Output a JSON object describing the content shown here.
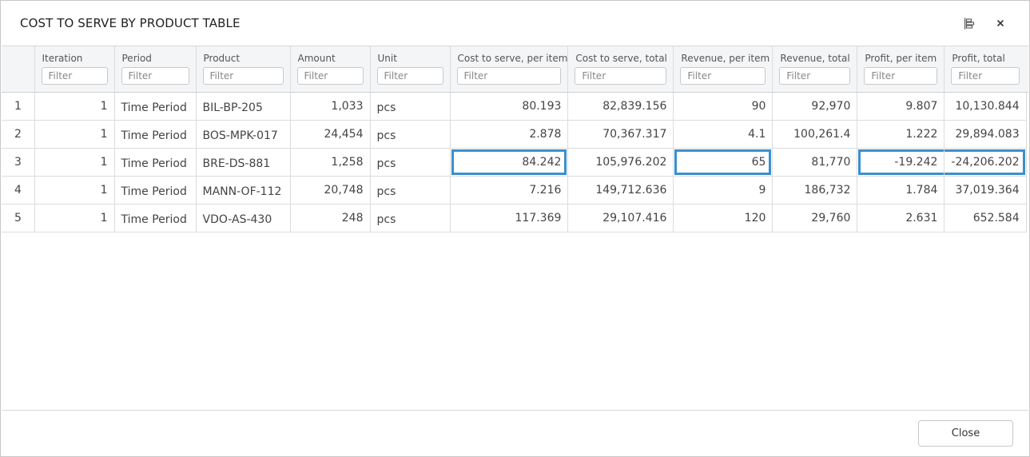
{
  "dialog": {
    "title": "COST TO SERVE BY PRODUCT TABLE",
    "close_button_label": "Close"
  },
  "table": {
    "filter_placeholder": "Filter",
    "columns": [
      {
        "label": "Iteration"
      },
      {
        "label": "Period"
      },
      {
        "label": "Product"
      },
      {
        "label": "Amount"
      },
      {
        "label": "Unit"
      },
      {
        "label": "Cost to serve, per item"
      },
      {
        "label": "Cost to serve, total"
      },
      {
        "label": "Revenue, per item"
      },
      {
        "label": "Revenue, total"
      },
      {
        "label": "Profit, per item"
      },
      {
        "label": "Profit, total"
      }
    ],
    "rows": [
      {
        "index": "1",
        "cells": [
          "1",
          "Time Period",
          "BIL-BP-205",
          "1,033",
          "pcs",
          "80.193",
          "82,839.156",
          "90",
          "92,970",
          "9.807",
          "10,130.844"
        ]
      },
      {
        "index": "2",
        "cells": [
          "1",
          "Time Period",
          "BOS-MPK-017",
          "24,454",
          "pcs",
          "2.878",
          "70,367.317",
          "4.1",
          "100,261.4",
          "1.222",
          "29,894.083"
        ]
      },
      {
        "index": "3",
        "cells": [
          "1",
          "Time Period",
          "BRE-DS-881",
          "1,258",
          "pcs",
          "84.242",
          "105,976.202",
          "65",
          "81,770",
          "-19.242",
          "-24,206.202"
        ]
      },
      {
        "index": "4",
        "cells": [
          "1",
          "Time Period",
          "MANN-OF-112",
          "20,748",
          "pcs",
          "7.216",
          "149,712.636",
          "9",
          "186,732",
          "1.784",
          "37,019.364"
        ]
      },
      {
        "index": "5",
        "cells": [
          "1",
          "Time Period",
          "VDO-AS-430",
          "248",
          "pcs",
          "117.369",
          "29,107.416",
          "120",
          "29,760",
          "2.631",
          "652.584"
        ]
      }
    ],
    "selected_cells": [
      {
        "row": 2,
        "col": 5
      },
      {
        "row": 2,
        "col": 7
      },
      {
        "row": 2,
        "col": 9
      },
      {
        "row": 2,
        "col": 10
      }
    ]
  },
  "colors": {
    "selection_border": "#3a8fcf",
    "header_bg": "#f4f5f7"
  },
  "icons": {
    "columns": "column-settings-icon",
    "close": "close-icon"
  }
}
